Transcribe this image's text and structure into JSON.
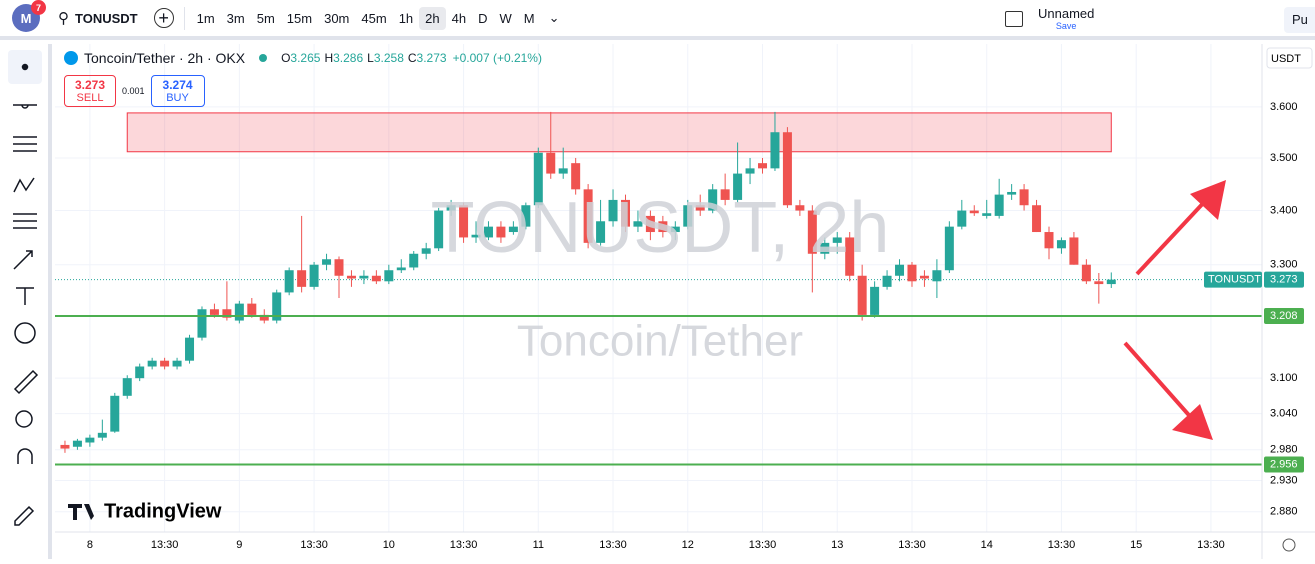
{
  "header": {
    "badge": "7",
    "symbol": "TONUSDT",
    "intervals": [
      "1m",
      "3m",
      "5m",
      "15m",
      "30m",
      "45m",
      "1h",
      "2h",
      "4h",
      "D",
      "W",
      "M"
    ],
    "active_interval": 7,
    "layout_name": "Unnamed",
    "save": "Save",
    "publish": "Pu"
  },
  "legend": {
    "title": "Toncoin/Tether · 2h · OKX",
    "ohlc": [
      [
        "O",
        "3.265"
      ],
      [
        "H",
        "3.286"
      ],
      [
        "L",
        "3.258"
      ],
      [
        "C",
        "3.273"
      ]
    ],
    "change": "+0.007 (+0.21%)",
    "sell_price": "3.273",
    "sell": "SELL",
    "spread": "0.001",
    "buy_price": "3.274",
    "buy": "BUY"
  },
  "logo": "TradingView",
  "chart_data": {
    "type": "candlestick",
    "watermark": "TONUSDT, 2h",
    "watermark_sub": "Toncoin/Tether",
    "currency": "USDT",
    "log_scale": true,
    "ylim": [
      2.848,
      3.731
    ],
    "yticks": [
      {
        "value": 2.88,
        "label": "2.880"
      },
      {
        "value": 2.93,
        "label": "2.930"
      },
      {
        "value": 2.98,
        "label": "2.980"
      },
      {
        "value": 3.04,
        "label": "3.040"
      },
      {
        "value": 3.1,
        "label": "3.100"
      },
      {
        "value": 3.3,
        "label": "3.300"
      },
      {
        "value": 3.4,
        "label": "3.400"
      },
      {
        "value": 3.5,
        "label": "3.500"
      },
      {
        "value": 3.6,
        "label": "3.600"
      }
    ],
    "xlim": [
      -0.8,
      96.1
    ],
    "xticks": [
      {
        "value": 2,
        "label": "8"
      },
      {
        "value": 8,
        "label": "13:30"
      },
      {
        "value": 14,
        "label": "9"
      },
      {
        "value": 20,
        "label": "13:30"
      },
      {
        "value": 26,
        "label": "10"
      },
      {
        "value": 32,
        "label": "13:30"
      },
      {
        "value": 38,
        "label": "11"
      },
      {
        "value": 44,
        "label": "13:30"
      },
      {
        "value": 50,
        "label": "12"
      },
      {
        "value": 56,
        "label": "13:30"
      },
      {
        "value": 62,
        "label": "13"
      },
      {
        "value": 68,
        "label": "13:30"
      },
      {
        "value": 74,
        "label": "14"
      },
      {
        "value": 80,
        "label": "13:30"
      },
      {
        "value": 86,
        "label": "15"
      },
      {
        "value": 92,
        "label": "13:30"
      }
    ],
    "grid": true,
    "up_color": "#26a69a",
    "down_color": "#ef5350",
    "open": [
      2.988,
      2.985,
      2.992,
      3.0,
      3.01,
      3.07,
      3.1,
      3.12,
      3.13,
      3.12,
      3.13,
      3.17,
      3.22,
      3.22,
      3.2,
      3.23,
      3.21,
      3.2,
      3.25,
      3.29,
      3.26,
      3.3,
      3.31,
      3.28,
      3.275,
      3.28,
      3.27,
      3.29,
      3.295,
      3.32,
      3.33,
      3.4,
      3.41,
      3.35,
      3.35,
      3.37,
      3.36,
      3.37,
      3.41,
      3.51,
      3.47,
      3.49,
      3.44,
      3.34,
      3.38,
      3.42,
      3.37,
      3.39,
      3.38,
      3.36,
      3.37,
      3.41,
      3.4,
      3.44,
      3.42,
      3.47,
      3.49,
      3.48,
      3.55,
      3.41,
      3.4,
      3.32,
      3.34,
      3.35,
      3.28,
      3.21,
      3.26,
      3.28,
      3.3,
      3.28,
      3.27,
      3.29,
      3.37,
      3.4,
      3.39,
      3.39,
      3.43,
      3.44,
      3.41,
      3.36,
      3.33,
      3.35,
      3.3,
      3.27,
      3.265
    ],
    "high": [
      2.995,
      2.998,
      3.005,
      3.03,
      3.075,
      3.105,
      3.125,
      3.135,
      3.135,
      3.135,
      3.175,
      3.225,
      3.23,
      3.27,
      3.235,
      3.24,
      3.22,
      3.255,
      3.295,
      3.39,
      3.305,
      3.32,
      3.315,
      3.29,
      3.29,
      3.29,
      3.3,
      3.31,
      3.325,
      3.34,
      3.405,
      3.42,
      3.415,
      3.38,
      3.38,
      3.38,
      3.38,
      3.415,
      3.52,
      3.59,
      3.52,
      3.5,
      3.45,
      3.42,
      3.44,
      3.43,
      3.4,
      3.4,
      3.39,
      3.38,
      3.42,
      3.43,
      3.45,
      3.47,
      3.53,
      3.5,
      3.5,
      3.59,
      3.56,
      3.42,
      3.41,
      3.35,
      3.36,
      3.36,
      3.3,
      3.27,
      3.29,
      3.31,
      3.305,
      3.29,
      3.31,
      3.38,
      3.42,
      3.41,
      3.42,
      3.46,
      3.45,
      3.45,
      3.42,
      3.37,
      3.35,
      3.36,
      3.31,
      3.285,
      3.286
    ],
    "low": [
      2.975,
      2.98,
      2.985,
      2.995,
      3.008,
      3.065,
      3.095,
      3.115,
      3.115,
      3.115,
      3.125,
      3.165,
      3.205,
      3.2,
      3.195,
      3.205,
      3.195,
      3.195,
      3.245,
      3.25,
      3.255,
      3.29,
      3.24,
      3.26,
      3.265,
      3.265,
      3.265,
      3.285,
      3.29,
      3.31,
      3.325,
      3.39,
      3.34,
      3.34,
      3.345,
      3.34,
      3.355,
      3.365,
      3.405,
      3.46,
      3.46,
      3.43,
      3.33,
      3.335,
      3.37,
      3.36,
      3.36,
      3.345,
      3.35,
      3.345,
      3.365,
      3.39,
      3.395,
      3.41,
      3.415,
      3.45,
      3.47,
      3.475,
      3.405,
      3.39,
      3.25,
      3.31,
      3.32,
      3.27,
      3.2,
      3.205,
      3.255,
      3.27,
      3.26,
      3.26,
      3.24,
      3.285,
      3.365,
      3.39,
      3.385,
      3.385,
      3.42,
      3.4,
      3.36,
      3.31,
      3.32,
      3.3,
      3.265,
      3.23,
      3.258
    ],
    "close": [
      2.982,
      2.995,
      3.0,
      3.008,
      3.07,
      3.1,
      3.12,
      3.13,
      3.12,
      3.13,
      3.17,
      3.22,
      3.21,
      3.205,
      3.23,
      3.21,
      3.2,
      3.25,
      3.29,
      3.26,
      3.3,
      3.31,
      3.28,
      3.275,
      3.28,
      3.27,
      3.29,
      3.295,
      3.32,
      3.33,
      3.4,
      3.41,
      3.35,
      3.355,
      3.37,
      3.35,
      3.37,
      3.41,
      3.51,
      3.47,
      3.48,
      3.44,
      3.34,
      3.38,
      3.42,
      3.37,
      3.38,
      3.36,
      3.36,
      3.37,
      3.41,
      3.4,
      3.44,
      3.42,
      3.47,
      3.48,
      3.48,
      3.55,
      3.41,
      3.4,
      3.32,
      3.34,
      3.35,
      3.28,
      3.21,
      3.26,
      3.28,
      3.3,
      3.27,
      3.275,
      3.29,
      3.37,
      3.4,
      3.395,
      3.395,
      3.43,
      3.435,
      3.41,
      3.36,
      3.33,
      3.345,
      3.3,
      3.27,
      3.265,
      3.273
    ],
    "zone": {
      "top": 3.588,
      "bottom": 3.512,
      "start": 5,
      "end": 84,
      "color": "#f23645"
    },
    "levels": [
      {
        "value": 3.208,
        "color": "#4caf50"
      },
      {
        "value": 2.956,
        "color": "#4caf50"
      }
    ],
    "last": {
      "name": "TONUSDT",
      "value": 3.273
    }
  }
}
